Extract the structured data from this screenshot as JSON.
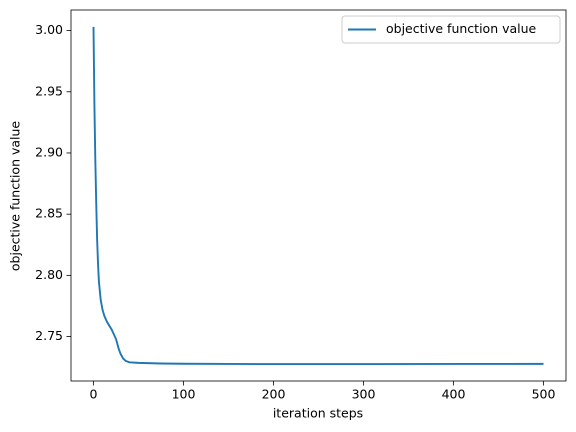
{
  "chart_data": {
    "type": "line",
    "xlabel": "iteration steps",
    "ylabel": "objective function value",
    "x": [
      0,
      1,
      2,
      3,
      4,
      5,
      6,
      8,
      10,
      12,
      15,
      20,
      25,
      28,
      30,
      33,
      36,
      40,
      50,
      75,
      100,
      150,
      200,
      300,
      400,
      500
    ],
    "series": [
      {
        "name": "objective function value",
        "color": "#1f77b4",
        "values": [
          3.003,
          2.94,
          2.895,
          2.86,
          2.83,
          2.81,
          2.795,
          2.78,
          2.772,
          2.767,
          2.762,
          2.756,
          2.748,
          2.74,
          2.736,
          2.732,
          2.73,
          2.729,
          2.7285,
          2.728,
          2.7278,
          2.7276,
          2.7275,
          2.7275,
          2.7276,
          2.7277
        ]
      }
    ],
    "xlim": [
      -25,
      525
    ],
    "ylim": [
      2.7137,
      3.0168
    ],
    "xticks": [
      0,
      100,
      200,
      300,
      400,
      500
    ],
    "yticks": [
      2.75,
      {
        "value": 2.8,
        "label": "2.80"
      },
      2.85,
      {
        "value": 2.9,
        "label": "2.90"
      },
      2.95,
      {
        "value": 3.0,
        "label": "3.00"
      }
    ],
    "legend": "upper right"
  }
}
